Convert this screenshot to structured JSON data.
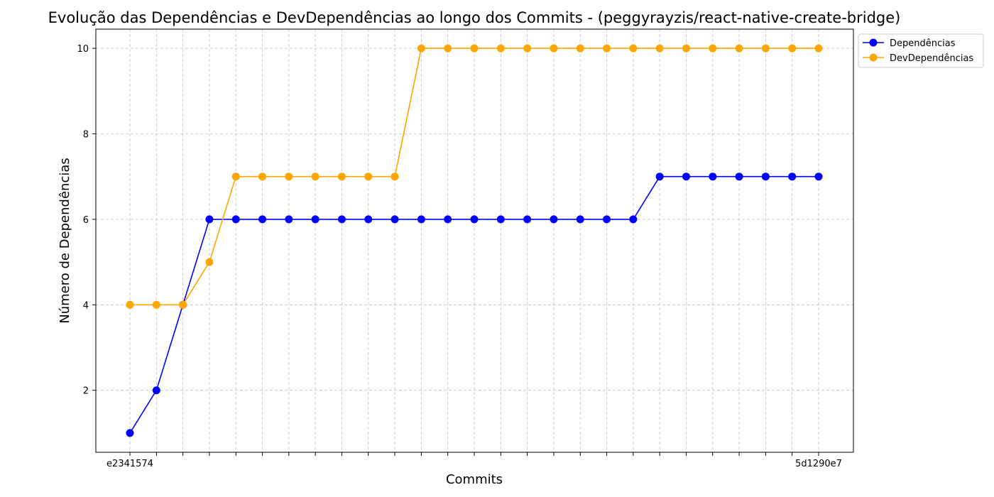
{
  "chart_data": {
    "type": "line",
    "title": "Evolução das Dependências e DevDependências ao longo dos Commits - (peggyrayzis/react-native-create-bridge)",
    "xlabel": "Commits",
    "ylabel": "Número de Dependências",
    "ylim": [
      0.55,
      10.45
    ],
    "yticks": [
      2,
      4,
      6,
      8,
      10
    ],
    "grid": true,
    "legend_position": "top-right-outside",
    "x": [
      "e2341574",
      "",
      "",
      "",
      "",
      "",
      "",
      "",
      "",
      "",
      "",
      "",
      "",
      "",
      "",
      "",
      "",
      "",
      "",
      "",
      "",
      "",
      "",
      "",
      "",
      "",
      "5d1290e7"
    ],
    "series": [
      {
        "name": "Dependências",
        "color": "#0000ff",
        "values": [
          1,
          2,
          4,
          6,
          6,
          6,
          6,
          6,
          6,
          6,
          6,
          6,
          6,
          6,
          6,
          6,
          6,
          6,
          6,
          6,
          7,
          7,
          7,
          7,
          7,
          7,
          7
        ]
      },
      {
        "name": "DevDependências",
        "color": "#ffa500",
        "values": [
          4,
          4,
          4,
          5,
          7,
          7,
          7,
          7,
          7,
          7,
          7,
          10,
          10,
          10,
          10,
          10,
          10,
          10,
          10,
          10,
          10,
          10,
          10,
          10,
          10,
          10,
          10
        ]
      }
    ]
  }
}
